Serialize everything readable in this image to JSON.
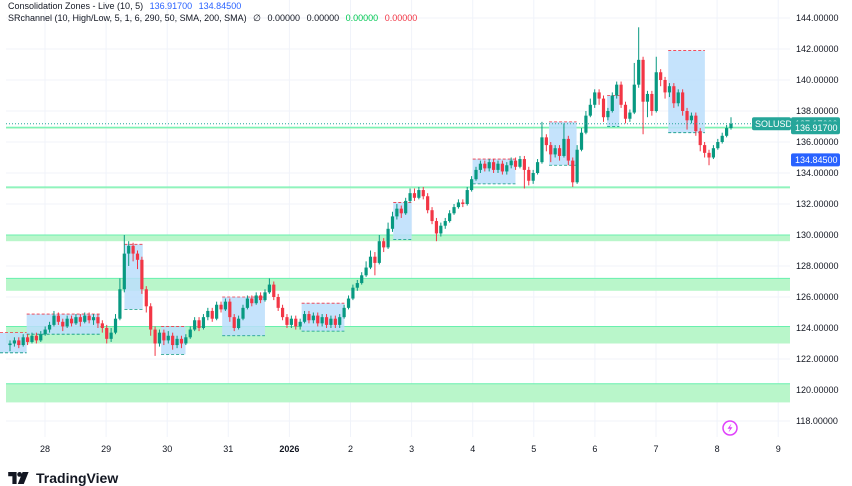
{
  "legend": {
    "line1": {
      "name": "Consolidation Zones - Live (10, 5)",
      "value_a": "136.91700",
      "value_b": "134.84500"
    },
    "line2": {
      "name": "SRchannel (10, High/Low, 5, 1, 6, 290, 50, SMA, 200, SMA)",
      "symbol": "∅",
      "value_a": "0.00000",
      "value_b": "0.00000",
      "value_c": "0.00000",
      "value_d": "0.00000"
    }
  },
  "brand": {
    "name": "TradingView",
    "icon": "tradingview-logo-icon"
  },
  "colors": {
    "up": "#089981",
    "down": "#f23645",
    "zone_blue": "#bbdefb",
    "sr_band": "#b9f6ca",
    "sr_line": "#69f0ae",
    "price_line": "#26a69a",
    "tag_green": "#26a69a",
    "tag_blue": "#2962ff",
    "grid": "#f0f3fa"
  },
  "chart_data": {
    "type": "candlestick",
    "symbol": "SOLUSD",
    "y_axis": {
      "min": 116.8,
      "max": 144.9,
      "ticks": [
        "144.00000",
        "142.00000",
        "140.00000",
        "138.00000",
        "136.00000",
        "134.00000",
        "132.00000",
        "130.00000",
        "128.00000",
        "126.00000",
        "124.00000",
        "122.00000",
        "120.00000",
        "118.00000"
      ]
    },
    "x_axis": {
      "ticks": [
        "28",
        "29",
        "30",
        "31",
        "2026",
        "2",
        "3",
        "4",
        "5",
        "6",
        "7",
        "8",
        "9"
      ],
      "bold_tick": "2026"
    },
    "last_price": 137.176,
    "price_tags": [
      {
        "label": "SOLUSD",
        "value": "137.17600",
        "price": 137.176,
        "color": "#26a69a"
      },
      {
        "label": "",
        "value": "136.91700",
        "price": 136.917,
        "color": "#26a69a"
      },
      {
        "label": "",
        "value": "134.84500",
        "price": 134.845,
        "color": "#2962ff"
      }
    ],
    "sr_channels": [
      {
        "low": 119.2,
        "high": 120.4
      },
      {
        "low": 123.0,
        "high": 124.1
      },
      {
        "low": 126.4,
        "high": 127.2
      },
      {
        "low": 129.6,
        "high": 130.0
      },
      {
        "low": 133.0,
        "high": 133.1
      },
      {
        "low": 136.9,
        "high": 136.95
      }
    ],
    "zones": [
      {
        "start": 27.1,
        "end": 27.7,
        "low": 122.4,
        "high": 123.7
      },
      {
        "start": 27.7,
        "end": 28.9,
        "low": 123.6,
        "high": 124.9
      },
      {
        "start": 29.3,
        "end": 29.6,
        "low": 125.2,
        "high": 129.4
      },
      {
        "start": 29.9,
        "end": 30.3,
        "low": 122.3,
        "high": 124.1
      },
      {
        "start": 30.9,
        "end": 31.6,
        "low": 123.5,
        "high": 126.0
      },
      {
        "start": 32.2,
        "end": 32.9,
        "low": 123.8,
        "high": 125.6
      },
      {
        "start": 33.7,
        "end": 34.0,
        "low": 129.7,
        "high": 132.1
      },
      {
        "start": 35.0,
        "end": 35.7,
        "low": 133.3,
        "high": 134.9
      },
      {
        "start": 36.25,
        "end": 36.7,
        "low": 134.5,
        "high": 137.3
      },
      {
        "start": 37.2,
        "end": 37.4,
        "low": 137.0,
        "high": 139.0
      },
      {
        "start": 38.2,
        "end": 38.8,
        "low": 136.6,
        "high": 141.9
      }
    ],
    "candles": [
      [
        122.9,
        123.0,
        123.2,
        122.5
      ],
      [
        123.0,
        123.2,
        123.4,
        122.8
      ],
      [
        123.2,
        122.9,
        123.4,
        122.7
      ],
      [
        122.9,
        123.4,
        123.6,
        122.8
      ],
      [
        123.4,
        123.1,
        123.6,
        122.9
      ],
      [
        123.1,
        123.5,
        123.7,
        123.0
      ],
      [
        123.5,
        123.2,
        123.7,
        123.0
      ],
      [
        123.2,
        123.6,
        123.8,
        123.1
      ],
      [
        123.6,
        123.9,
        124.1,
        123.5
      ],
      [
        123.9,
        124.2,
        124.4,
        123.7
      ],
      [
        124.2,
        124.8,
        125.1,
        124.1
      ],
      [
        124.8,
        124.4,
        125.0,
        124.2
      ],
      [
        124.4,
        124.1,
        124.6,
        123.8
      ],
      [
        124.1,
        124.6,
        124.8,
        124.0
      ],
      [
        124.6,
        124.3,
        124.8,
        124.1
      ],
      [
        124.3,
        124.7,
        124.9,
        124.2
      ],
      [
        124.7,
        124.4,
        124.9,
        124.1
      ],
      [
        124.4,
        124.8,
        125.0,
        124.3
      ],
      [
        124.8,
        124.5,
        125.0,
        124.3
      ],
      [
        124.5,
        124.7,
        124.9,
        124.2
      ],
      [
        124.7,
        124.3,
        124.9,
        124.0
      ],
      [
        124.3,
        124.0,
        124.5,
        123.7
      ],
      [
        124.0,
        123.3,
        124.2,
        123.0
      ],
      [
        123.3,
        123.7,
        124.0,
        123.1
      ],
      [
        123.7,
        124.6,
        124.9,
        123.6
      ],
      [
        124.6,
        126.5,
        127.2,
        124.5
      ],
      [
        126.5,
        128.8,
        130.0,
        126.3
      ],
      [
        128.8,
        129.3,
        129.6,
        128.0
      ],
      [
        129.3,
        128.8,
        129.5,
        128.3
      ],
      [
        128.8,
        128.4,
        129.0,
        127.8
      ],
      [
        128.4,
        126.5,
        128.6,
        126.2
      ],
      [
        126.5,
        125.4,
        126.7,
        125.0
      ],
      [
        125.4,
        123.9,
        125.6,
        123.5
      ],
      [
        123.9,
        123.0,
        124.1,
        122.2
      ],
      [
        123.0,
        123.7,
        123.9,
        122.8
      ],
      [
        123.7,
        123.2,
        123.9,
        122.9
      ],
      [
        123.2,
        123.5,
        123.8,
        123.0
      ],
      [
        123.5,
        122.9,
        123.7,
        122.6
      ],
      [
        122.9,
        123.3,
        123.5,
        122.7
      ],
      [
        123.3,
        123.0,
        123.5,
        122.7
      ],
      [
        123.0,
        123.4,
        123.6,
        122.9
      ],
      [
        123.4,
        123.9,
        124.1,
        123.3
      ],
      [
        123.9,
        124.5,
        124.7,
        123.8
      ],
      [
        124.5,
        124.0,
        124.7,
        123.8
      ],
      [
        124.0,
        124.7,
        124.9,
        123.9
      ],
      [
        124.7,
        125.1,
        125.3,
        124.5
      ],
      [
        125.1,
        124.6,
        125.3,
        124.4
      ],
      [
        124.6,
        125.5,
        125.7,
        124.5
      ],
      [
        125.5,
        125.2,
        125.7,
        125.0
      ],
      [
        125.2,
        125.7,
        125.9,
        125.1
      ],
      [
        125.7,
        124.7,
        125.9,
        124.4
      ],
      [
        124.7,
        124.0,
        124.9,
        123.8
      ],
      [
        124.0,
        124.6,
        124.8,
        123.9
      ],
      [
        124.6,
        125.3,
        125.5,
        124.5
      ],
      [
        125.3,
        125.9,
        126.1,
        125.2
      ],
      [
        125.9,
        125.6,
        126.1,
        125.4
      ],
      [
        125.6,
        126.1,
        126.3,
        125.5
      ],
      [
        126.1,
        125.8,
        126.3,
        125.6
      ],
      [
        125.8,
        126.3,
        126.5,
        125.7
      ],
      [
        126.3,
        126.8,
        127.2,
        126.2
      ],
      [
        126.8,
        126.0,
        127.0,
        125.8
      ],
      [
        126.0,
        125.3,
        126.2,
        125.1
      ],
      [
        125.3,
        124.7,
        125.5,
        124.5
      ],
      [
        124.7,
        124.2,
        124.9,
        124.0
      ],
      [
        124.2,
        124.6,
        124.8,
        124.0
      ],
      [
        124.6,
        124.1,
        124.8,
        123.9
      ],
      [
        124.1,
        124.4,
        124.6,
        123.9
      ],
      [
        124.4,
        124.9,
        125.1,
        124.3
      ],
      [
        124.9,
        124.5,
        125.1,
        124.3
      ],
      [
        124.5,
        124.8,
        125.0,
        124.3
      ],
      [
        124.8,
        124.3,
        125.0,
        124.1
      ],
      [
        124.3,
        124.7,
        124.9,
        124.1
      ],
      [
        124.7,
        124.2,
        124.9,
        124.0
      ],
      [
        124.2,
        124.6,
        124.8,
        124.0
      ],
      [
        124.6,
        124.2,
        124.8,
        124.0
      ],
      [
        124.2,
        124.7,
        124.9,
        124.0
      ],
      [
        124.7,
        125.3,
        125.5,
        124.6
      ],
      [
        125.3,
        125.9,
        126.1,
        125.2
      ],
      [
        125.9,
        126.6,
        126.8,
        125.8
      ],
      [
        126.6,
        126.9,
        127.1,
        126.4
      ],
      [
        126.9,
        127.4,
        127.6,
        126.8
      ],
      [
        127.4,
        127.9,
        128.3,
        127.3
      ],
      [
        127.9,
        128.6,
        129.0,
        127.8
      ],
      [
        128.6,
        128.2,
        128.9,
        127.4
      ],
      [
        128.2,
        129.6,
        130.0,
        128.1
      ],
      [
        129.6,
        129.2,
        129.8,
        128.9
      ],
      [
        129.2,
        130.4,
        130.8,
        129.1
      ],
      [
        130.4,
        131.2,
        131.5,
        130.2
      ],
      [
        131.2,
        131.7,
        132.0,
        131.0
      ],
      [
        131.7,
        131.4,
        131.9,
        131.1
      ],
      [
        131.4,
        132.2,
        132.4,
        131.3
      ],
      [
        132.2,
        132.7,
        133.0,
        132.1
      ],
      [
        132.7,
        132.4,
        133.0,
        132.2
      ],
      [
        132.4,
        132.9,
        133.1,
        132.3
      ],
      [
        132.9,
        132.5,
        133.1,
        132.3
      ],
      [
        132.5,
        131.6,
        132.7,
        131.4
      ],
      [
        131.6,
        130.9,
        131.8,
        130.7
      ],
      [
        130.9,
        130.1,
        131.1,
        129.6
      ],
      [
        130.1,
        130.6,
        130.8,
        129.9
      ],
      [
        130.6,
        130.9,
        131.1,
        130.4
      ],
      [
        130.9,
        131.4,
        131.6,
        130.8
      ],
      [
        131.4,
        131.8,
        132.0,
        131.3
      ],
      [
        131.8,
        132.1,
        132.3,
        131.7
      ],
      [
        132.1,
        132.0,
        132.3,
        131.8
      ],
      [
        132.0,
        132.9,
        133.1,
        131.9
      ],
      [
        132.9,
        133.6,
        133.8,
        132.8
      ],
      [
        133.6,
        134.2,
        134.4,
        133.5
      ],
      [
        134.2,
        134.6,
        134.8,
        134.0
      ],
      [
        134.6,
        134.3,
        134.8,
        134.1
      ],
      [
        134.3,
        134.7,
        134.9,
        134.1
      ],
      [
        134.7,
        134.2,
        134.9,
        134.0
      ],
      [
        134.2,
        134.6,
        134.8,
        134.0
      ],
      [
        134.6,
        134.1,
        134.8,
        133.9
      ],
      [
        134.1,
        134.5,
        134.7,
        133.9
      ],
      [
        134.5,
        134.8,
        135.0,
        134.3
      ],
      [
        134.8,
        134.4,
        135.0,
        134.2
      ],
      [
        134.4,
        134.9,
        135.1,
        134.3
      ],
      [
        134.9,
        134.2,
        135.1,
        133.0
      ],
      [
        134.2,
        133.5,
        134.4,
        133.2
      ],
      [
        133.5,
        134.0,
        134.2,
        133.3
      ],
      [
        134.0,
        134.7,
        134.9,
        133.9
      ],
      [
        134.7,
        136.3,
        137.3,
        134.6
      ],
      [
        136.3,
        135.8,
        136.5,
        135.4
      ],
      [
        135.8,
        135.2,
        136.0,
        134.7
      ],
      [
        135.2,
        135.6,
        135.8,
        135.0
      ],
      [
        135.6,
        135.1,
        135.8,
        134.8
      ],
      [
        135.1,
        136.2,
        137.2,
        135.0
      ],
      [
        136.2,
        134.8,
        136.4,
        134.5
      ],
      [
        134.8,
        133.4,
        135.0,
        133.1
      ],
      [
        133.4,
        135.5,
        135.8,
        133.3
      ],
      [
        135.5,
        136.6,
        136.9,
        135.4
      ],
      [
        136.6,
        137.7,
        138.0,
        136.5
      ],
      [
        137.7,
        138.4,
        138.8,
        137.6
      ],
      [
        138.4,
        139.2,
        139.4,
        138.2
      ],
      [
        139.2,
        138.8,
        139.4,
        138.4
      ],
      [
        138.8,
        137.6,
        139.0,
        137.3
      ],
      [
        137.6,
        138.0,
        138.2,
        137.4
      ],
      [
        138.0,
        139.0,
        139.2,
        137.9
      ],
      [
        139.0,
        139.7,
        139.9,
        138.8
      ],
      [
        139.7,
        138.4,
        139.9,
        138.2
      ],
      [
        138.4,
        137.5,
        138.6,
        137.2
      ],
      [
        137.5,
        137.9,
        138.1,
        137.3
      ],
      [
        137.9,
        139.7,
        141.1,
        137.8
      ],
      [
        139.7,
        141.3,
        143.4,
        139.5
      ],
      [
        141.3,
        138.6,
        141.5,
        136.5
      ],
      [
        138.6,
        139.1,
        139.3,
        137.6
      ],
      [
        139.1,
        138.0,
        139.3,
        137.7
      ],
      [
        138.0,
        140.5,
        141.5,
        137.9
      ],
      [
        140.5,
        140.0,
        140.7,
        139.6
      ],
      [
        140.0,
        139.2,
        140.2,
        138.8
      ],
      [
        139.2,
        139.6,
        139.8,
        138.9
      ],
      [
        139.6,
        138.5,
        139.8,
        138.2
      ],
      [
        138.5,
        139.2,
        139.4,
        138.3
      ],
      [
        139.2,
        138.0,
        139.4,
        137.7
      ],
      [
        138.0,
        137.4,
        138.2,
        136.8
      ],
      [
        137.4,
        137.7,
        137.9,
        137.2
      ],
      [
        137.7,
        136.7,
        137.9,
        136.4
      ],
      [
        136.7,
        135.8,
        136.9,
        135.4
      ],
      [
        135.8,
        135.3,
        136.0,
        135.0
      ],
      [
        135.3,
        135.0,
        135.5,
        134.5
      ],
      [
        135.0,
        135.6,
        135.8,
        134.9
      ],
      [
        135.6,
        136.0,
        136.2,
        135.5
      ],
      [
        136.0,
        136.4,
        136.6,
        135.9
      ],
      [
        136.4,
        136.9,
        137.1,
        136.3
      ],
      [
        136.9,
        137.18,
        137.6,
        136.8
      ]
    ]
  }
}
